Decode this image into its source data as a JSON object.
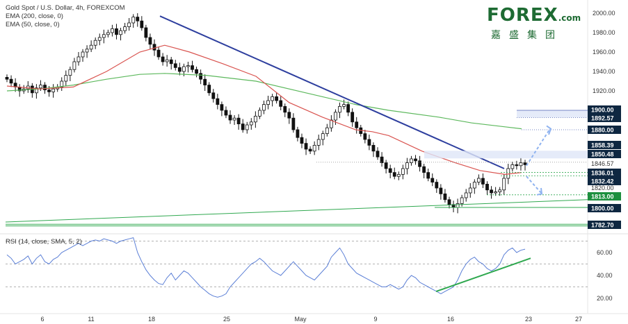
{
  "legend": {
    "line1": "Gold Spot / U.S. Dollar, 4h, FOREXCOM",
    "line2": "EMA (200, close, 0)",
    "line3": "EMA (50, close, 0)"
  },
  "logo": {
    "brand": "FOREX",
    "domain": ".com",
    "chinese": "嘉盛集团"
  },
  "rsi_label": "RSI (14, close, SMA, 5, 2)",
  "colors": {
    "up": "#111111",
    "down": "#111111",
    "ema50": "#d9534f",
    "ema200": "#5cb85c",
    "trendline": "#2d3e9e",
    "rsi": "#5b7fd6",
    "green_line": "#2fa84f",
    "projection": "#8fb3f0"
  },
  "chart_data": [
    {
      "type": "candlestick",
      "title": "Gold Spot / U.S. Dollar, 4h, FOREXCOM",
      "x_ticks": [
        "6",
        "11",
        "18",
        "25",
        "May",
        "9",
        "16",
        "23",
        "27"
      ],
      "y_ticks": [
        2000.0,
        1980.0,
        1960.0,
        1940.0,
        1920.0
      ],
      "ylim": [
        1775,
        2005
      ],
      "price_labels": [
        {
          "value": 1900.0,
          "style": "dark"
        },
        {
          "value": 1892.57,
          "style": "dark"
        },
        {
          "value": 1880.0,
          "style": "dark"
        },
        {
          "value": 1858.39,
          "style": "dark"
        },
        {
          "value": 1850.48,
          "style": "dark"
        },
        {
          "value": 1846.57,
          "style": "plain"
        },
        {
          "value": 1836.01,
          "style": "dark"
        },
        {
          "value": 1832.42,
          "style": "dark"
        },
        {
          "value": 1820.0,
          "style": "plain"
        },
        {
          "value": 1813.0,
          "style": "green"
        },
        {
          "value": 1800.0,
          "style": "dark"
        },
        {
          "value": 1782.7,
          "style": "dark"
        }
      ],
      "series": [
        {
          "name": "EMA (200, close, 0)",
          "color": "#5cb85c",
          "points": [
            [
              0,
              1920
            ],
            [
              40,
              1922
            ],
            [
              80,
              1926
            ],
            [
              120,
              1932
            ],
            [
              160,
              1937
            ],
            [
              190,
              1938
            ],
            [
              240,
              1936
            ],
            [
              300,
              1930
            ],
            [
              360,
              1918
            ],
            [
              420,
              1906
            ],
            [
              460,
              1900
            ],
            [
              520,
              1893
            ],
            [
              560,
              1887
            ],
            [
              600,
              1883
            ],
            [
              620,
              1881
            ]
          ]
        },
        {
          "name": "EMA (50, close, 0)",
          "color": "#d9534f",
          "points": [
            [
              0,
              1925
            ],
            [
              40,
              1922
            ],
            [
              80,
              1924
            ],
            [
              120,
              1940
            ],
            [
              160,
              1960
            ],
            [
              190,
              1967
            ],
            [
              220,
              1960
            ],
            [
              260,
              1948
            ],
            [
              300,
              1935
            ],
            [
              340,
              1908
            ],
            [
              380,
              1893
            ],
            [
              420,
              1880
            ],
            [
              440,
              1878
            ],
            [
              460,
              1874
            ],
            [
              500,
              1858
            ],
            [
              540,
              1846
            ],
            [
              570,
              1838
            ],
            [
              600,
              1834
            ],
            [
              620,
              1836
            ]
          ]
        }
      ],
      "close_series": [
        1932,
        1928,
        1924,
        1920,
        1922,
        1925,
        1918,
        1923,
        1926,
        1921,
        1919,
        1922,
        1924,
        1930,
        1936,
        1942,
        1950,
        1955,
        1960,
        1963,
        1967,
        1972,
        1975,
        1978,
        1980,
        1984,
        1978,
        1982,
        1986,
        1990,
        1996,
        1992,
        1985,
        1975,
        1968,
        1962,
        1955,
        1950,
        1952,
        1948,
        1944,
        1940,
        1945,
        1946,
        1942,
        1938,
        1932,
        1926,
        1918,
        1912,
        1906,
        1900,
        1895,
        1890,
        1892,
        1886,
        1880,
        1885,
        1888,
        1894,
        1900,
        1906,
        1910,
        1914,
        1910,
        1904,
        1898,
        1892,
        1880,
        1872,
        1866,
        1860,
        1858,
        1864,
        1870,
        1876,
        1882,
        1890,
        1898,
        1904,
        1906,
        1898,
        1888,
        1882,
        1876,
        1870,
        1864,
        1858,
        1852,
        1846,
        1840,
        1836,
        1832,
        1834,
        1840,
        1846,
        1850,
        1848,
        1842,
        1836,
        1830,
        1826,
        1820,
        1814,
        1808,
        1803,
        1800,
        1804,
        1810,
        1815,
        1820,
        1826,
        1830,
        1824,
        1818,
        1815,
        1816,
        1818,
        1830,
        1840,
        1844,
        1843,
        1846,
        1844
      ]
    },
    {
      "type": "line",
      "title": "RSI (14, close, SMA, 5, 2)",
      "y_ticks": [
        60.0,
        40.0,
        20.0
      ],
      "ylim": [
        15,
        75
      ],
      "bands": [
        30,
        50,
        70
      ],
      "values": [
        58,
        55,
        50,
        52,
        54,
        57,
        50,
        55,
        58,
        52,
        50,
        54,
        56,
        60,
        62,
        64,
        66,
        68,
        66,
        68,
        70,
        71,
        70,
        72,
        71,
        70,
        68,
        70,
        71,
        72,
        73,
        60,
        52,
        45,
        40,
        36,
        33,
        32,
        38,
        42,
        36,
        40,
        44,
        42,
        38,
        34,
        30,
        27,
        24,
        22,
        21,
        22,
        24,
        30,
        34,
        38,
        42,
        46,
        50,
        52,
        55,
        52,
        48,
        44,
        42,
        40,
        44,
        48,
        52,
        48,
        44,
        40,
        38,
        36,
        40,
        44,
        48,
        56,
        60,
        64,
        58,
        50,
        46,
        42,
        40,
        38,
        36,
        34,
        32,
        30,
        30,
        32,
        30,
        28,
        30,
        36,
        40,
        38,
        34,
        32,
        30,
        28,
        26,
        24,
        26,
        28,
        30,
        36,
        44,
        50,
        54,
        56,
        52,
        50,
        46,
        44,
        46,
        50,
        58,
        62,
        64,
        60,
        62,
        63
      ]
    }
  ]
}
